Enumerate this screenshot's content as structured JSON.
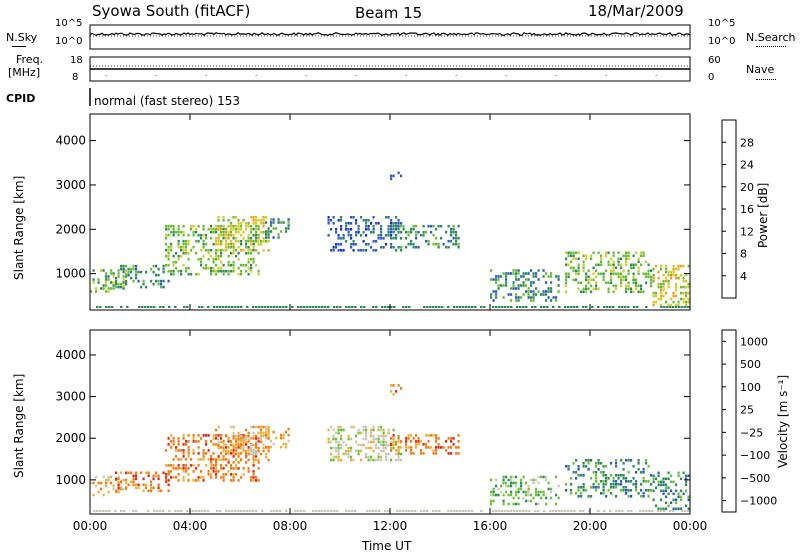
{
  "header": {
    "station": "Syowa South (fitACF)",
    "beam": "Beam 15",
    "date": "18/Mar/2009"
  },
  "noise_panel": {
    "left_label": "N.Sky",
    "right_label": "N.Search",
    "left_ticks": [
      "10^5",
      "10^0"
    ],
    "right_ticks": [
      "10^5",
      "10^0"
    ]
  },
  "freq_panel": {
    "left_label_1": "Freq.",
    "left_label_2": "[MHz]",
    "right_label": "Nave",
    "left_ticks": [
      "18",
      "8"
    ],
    "right_ticks": [
      "60",
      "0"
    ]
  },
  "cpid": {
    "label": "CPID",
    "mode": "normal (fast stereo) 153"
  },
  "colors": {
    "power_scale": [
      "#1c2fd6",
      "#2f58c8",
      "#2e8c5a",
      "#67bd32",
      "#d6c928",
      "#f59a1a",
      "#ee6a14",
      "#e32316"
    ],
    "velocity_scale": [
      "#1c3aa8",
      "#2a5cc0",
      "#2e8c5a",
      "#66c232",
      "#c8c8b8",
      "#e8b234",
      "#ef7a14",
      "#e02418"
    ]
  },
  "chart_data": [
    {
      "type": "heatmap",
      "title": "",
      "xlabel": "",
      "ylabel": "Slant Range [km]",
      "x_ticks": [
        "00:00",
        "04:00",
        "08:00",
        "12:00",
        "16:00",
        "20:00",
        "00:00"
      ],
      "xlim": [
        0,
        24
      ],
      "y_ticks": [
        1000,
        2000,
        3000,
        4000
      ],
      "ylim": [
        180,
        4600
      ],
      "colorbar": {
        "label": "Power [dB]",
        "ticks": [
          "4",
          "8",
          "12",
          "16",
          "20",
          "24",
          "28"
        ],
        "range": [
          0,
          30
        ]
      },
      "regions": [
        {
          "t": [
            0.0,
            1.5
          ],
          "r": [
            600,
            1100
          ],
          "level": 3
        },
        {
          "t": [
            1.0,
            3.2
          ],
          "r": [
            700,
            1200
          ],
          "level": 2
        },
        {
          "t": [
            3.0,
            6.8
          ],
          "r": [
            1000,
            2100
          ],
          "level": 3
        },
        {
          "t": [
            5.0,
            7.2
          ],
          "r": [
            1500,
            2300
          ],
          "level": 4
        },
        {
          "t": [
            7.0,
            8.0
          ],
          "r": [
            1800,
            2250
          ],
          "level": 2
        },
        {
          "t": [
            9.5,
            12.5
          ],
          "r": [
            1500,
            2300
          ],
          "level": 1
        },
        {
          "t": [
            12.0,
            14.8
          ],
          "r": [
            1600,
            2100
          ],
          "level": 2
        },
        {
          "t": [
            12.0,
            12.5
          ],
          "r": [
            3050,
            3300
          ],
          "level": 1
        },
        {
          "t": [
            16.0,
            18.8
          ],
          "r": [
            400,
            1100
          ],
          "level": 2
        },
        {
          "t": [
            19.0,
            22.5
          ],
          "r": [
            600,
            1500
          ],
          "level": 3
        },
        {
          "t": [
            22.5,
            24.0
          ],
          "r": [
            300,
            1200
          ],
          "level": 4
        }
      ]
    },
    {
      "type": "heatmap",
      "title": "",
      "xlabel": "Time UT",
      "ylabel": "Slant Range [km]",
      "x_ticks": [
        "00:00",
        "04:00",
        "08:00",
        "12:00",
        "16:00",
        "20:00",
        "00:00"
      ],
      "xlim": [
        0,
        24
      ],
      "y_ticks": [
        1000,
        2000,
        3000,
        4000
      ],
      "ylim": [
        180,
        4600
      ],
      "colorbar": {
        "label": "Velocity [m s⁻¹]",
        "ticks": [
          "1000",
          "500",
          "100",
          "25",
          "−25",
          "−100",
          "−500",
          "−1000"
        ],
        "range": [
          -1000,
          1000
        ]
      },
      "regions": [
        {
          "t": [
            0.0,
            1.5
          ],
          "r": [
            600,
            1100
          ],
          "level": 5
        },
        {
          "t": [
            1.0,
            3.2
          ],
          "r": [
            700,
            1200
          ],
          "level": 6
        },
        {
          "t": [
            3.0,
            6.8
          ],
          "r": [
            1000,
            2100
          ],
          "level": 6
        },
        {
          "t": [
            5.0,
            7.2
          ],
          "r": [
            1500,
            2300
          ],
          "level": 5
        },
        {
          "t": [
            7.0,
            8.0
          ],
          "r": [
            1800,
            2250
          ],
          "level": 5
        },
        {
          "t": [
            9.5,
            12.5
          ],
          "r": [
            1500,
            2300
          ],
          "level": 4
        },
        {
          "t": [
            12.0,
            14.8
          ],
          "r": [
            1600,
            2100
          ],
          "level": 6
        },
        {
          "t": [
            12.0,
            12.5
          ],
          "r": [
            3050,
            3300
          ],
          "level": 6
        },
        {
          "t": [
            16.0,
            18.8
          ],
          "r": [
            400,
            1100
          ],
          "level": 3
        },
        {
          "t": [
            19.0,
            22.5
          ],
          "r": [
            600,
            1500
          ],
          "level": 2
        },
        {
          "t": [
            22.5,
            24.0
          ],
          "r": [
            300,
            1200
          ],
          "level": 2
        }
      ]
    }
  ]
}
